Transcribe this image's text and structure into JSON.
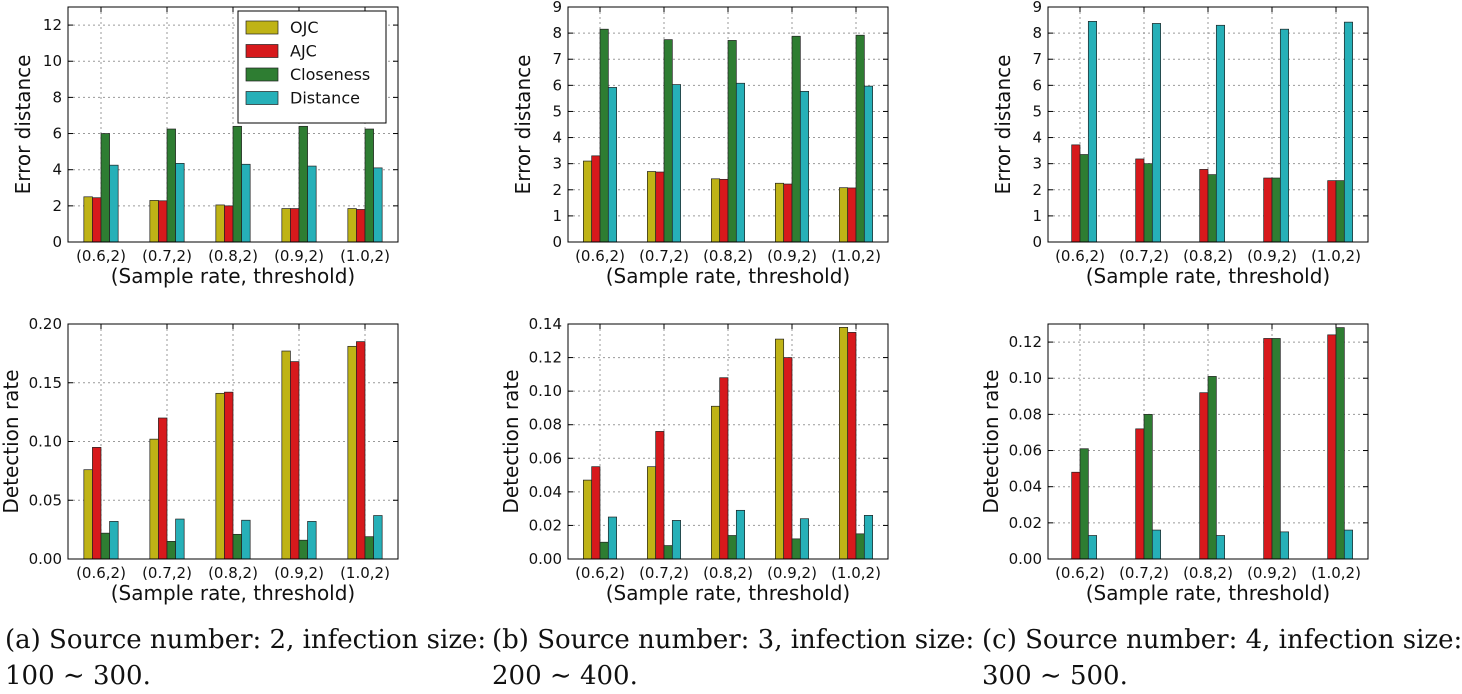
{
  "legend_colors": {
    "OJC": "#bfb316",
    "AJC": "#d7191c",
    "Closeness": "#2e7d32",
    "Distance": "#26b0b8"
  },
  "chart_data": [
    {
      "type": "bar",
      "panel": "a-top",
      "categories": [
        "(0.6,2)",
        "(0.7,2)",
        "(0.8,2)",
        "(0.9,2)",
        "(1.0,2)"
      ],
      "xlabel": "(Sample rate, threshold)",
      "ylabel": "Error distance",
      "ylim": [
        0,
        13
      ],
      "yticks": [
        0,
        2,
        4,
        6,
        8,
        10,
        12
      ],
      "ytick_labels": [
        "0",
        "2",
        "4",
        "6",
        "8",
        "10",
        "12"
      ],
      "grid": true,
      "legend": "top-right",
      "series": [
        {
          "name": "OJC",
          "values": [
            2.5,
            2.3,
            2.05,
            1.85,
            1.85
          ]
        },
        {
          "name": "AJC",
          "values": [
            2.45,
            2.28,
            2.0,
            1.85,
            1.8
          ]
        },
        {
          "name": "Closeness",
          "values": [
            6.0,
            6.25,
            6.4,
            6.4,
            6.25
          ]
        },
        {
          "name": "Distance",
          "values": [
            4.25,
            4.35,
            4.3,
            4.2,
            4.1
          ]
        }
      ]
    },
    {
      "type": "bar",
      "panel": "b-top",
      "categories": [
        "(0.6,2)",
        "(0.7,2)",
        "(0.8,2)",
        "(0.9,2)",
        "(1.0,2)"
      ],
      "xlabel": "(Sample rate, threshold)",
      "ylabel": "Error distance",
      "ylim": [
        0,
        9
      ],
      "yticks": [
        0,
        1,
        2,
        3,
        4,
        5,
        6,
        7,
        8,
        9
      ],
      "ytick_labels": [
        "0",
        "1",
        "2",
        "3",
        "4",
        "5",
        "6",
        "7",
        "8",
        "9"
      ],
      "grid": true,
      "series": [
        {
          "name": "OJC",
          "values": [
            3.1,
            2.7,
            2.42,
            2.25,
            2.08
          ]
        },
        {
          "name": "AJC",
          "values": [
            3.3,
            2.68,
            2.4,
            2.22,
            2.07
          ]
        },
        {
          "name": "Closeness",
          "values": [
            8.15,
            7.75,
            7.72,
            7.88,
            7.92
          ]
        },
        {
          "name": "Distance",
          "values": [
            5.92,
            6.03,
            6.08,
            5.77,
            5.97
          ]
        }
      ]
    },
    {
      "type": "bar",
      "panel": "c-top",
      "categories": [
        "(0.6,2)",
        "(0.7,2)",
        "(0.8,2)",
        "(0.9,2)",
        "(1.0,2)"
      ],
      "xlabel": "(Sample rate, threshold)",
      "ylabel": "Error distance",
      "ylim": [
        0,
        9
      ],
      "yticks": [
        0,
        1,
        2,
        3,
        4,
        5,
        6,
        7,
        8,
        9
      ],
      "ytick_labels": [
        "0",
        "1",
        "2",
        "3",
        "4",
        "5",
        "6",
        "7",
        "8",
        "9"
      ],
      "grid": true,
      "series": [
        {
          "name": "OJC",
          "values": [
            0,
            0,
            0,
            0,
            0
          ]
        },
        {
          "name": "AJC",
          "values": [
            3.72,
            3.18,
            2.78,
            2.45,
            2.35
          ]
        },
        {
          "name": "Closeness",
          "values": [
            3.35,
            3.0,
            2.58,
            2.45,
            2.35
          ]
        },
        {
          "name": "Distance",
          "values": [
            8.45,
            8.37,
            8.3,
            8.15,
            8.42
          ]
        }
      ]
    },
    {
      "type": "bar",
      "panel": "a-bottom",
      "categories": [
        "(0.6,2)",
        "(0.7,2)",
        "(0.8,2)",
        "(0.9,2)",
        "(1.0,2)"
      ],
      "xlabel": "(Sample rate, threshold)",
      "ylabel": "Detection rate",
      "ylim": [
        0,
        0.2
      ],
      "yticks": [
        0,
        0.05,
        0.1,
        0.15,
        0.2
      ],
      "ytick_labels": [
        "0.00",
        "0.05",
        "0.10",
        "0.15",
        "0.20"
      ],
      "grid": true,
      "series": [
        {
          "name": "OJC",
          "values": [
            0.076,
            0.102,
            0.141,
            0.177,
            0.181
          ]
        },
        {
          "name": "AJC",
          "values": [
            0.095,
            0.12,
            0.142,
            0.168,
            0.185
          ]
        },
        {
          "name": "Closeness",
          "values": [
            0.022,
            0.015,
            0.021,
            0.016,
            0.019
          ]
        },
        {
          "name": "Distance",
          "values": [
            0.032,
            0.034,
            0.033,
            0.032,
            0.037
          ]
        }
      ]
    },
    {
      "type": "bar",
      "panel": "b-bottom",
      "categories": [
        "(0.6,2)",
        "(0.7,2)",
        "(0.8,2)",
        "(0.9,2)",
        "(1.0,2)"
      ],
      "xlabel": "(Sample rate, threshold)",
      "ylabel": "Detection rate",
      "ylim": [
        0,
        0.14
      ],
      "yticks": [
        0,
        0.02,
        0.04,
        0.06,
        0.08,
        0.1,
        0.12,
        0.14
      ],
      "ytick_labels": [
        "0.00",
        "0.02",
        "0.04",
        "0.06",
        "0.08",
        "0.10",
        "0.12",
        "0.14"
      ],
      "grid": true,
      "series": [
        {
          "name": "OJC",
          "values": [
            0.047,
            0.055,
            0.091,
            0.131,
            0.138
          ]
        },
        {
          "name": "AJC",
          "values": [
            0.055,
            0.076,
            0.108,
            0.12,
            0.135
          ]
        },
        {
          "name": "Closeness",
          "values": [
            0.01,
            0.008,
            0.014,
            0.012,
            0.015
          ]
        },
        {
          "name": "Distance",
          "values": [
            0.025,
            0.023,
            0.029,
            0.024,
            0.026
          ]
        }
      ]
    },
    {
      "type": "bar",
      "panel": "c-bottom",
      "categories": [
        "(0.6,2)",
        "(0.7,2)",
        "(0.8,2)",
        "(0.9,2)",
        "(1.0,2)"
      ],
      "xlabel": "(Sample rate, threshold)",
      "ylabel": "Detection rate",
      "ylim": [
        0,
        0.13
      ],
      "yticks": [
        0,
        0.02,
        0.04,
        0.06,
        0.08,
        0.1,
        0.12
      ],
      "ytick_labels": [
        "0.00",
        "0.02",
        "0.04",
        "0.06",
        "0.08",
        "0.10",
        "0.12"
      ],
      "grid": true,
      "series": [
        {
          "name": "OJC",
          "values": [
            0,
            0,
            0,
            0,
            0
          ]
        },
        {
          "name": "AJC",
          "values": [
            0.048,
            0.072,
            0.092,
            0.122,
            0.124
          ]
        },
        {
          "name": "Closeness",
          "values": [
            0.061,
            0.08,
            0.101,
            0.122,
            0.128
          ]
        },
        {
          "name": "Distance",
          "values": [
            0.013,
            0.016,
            0.013,
            0.015,
            0.016
          ]
        }
      ]
    }
  ],
  "captions": [
    {
      "line1": "(a) Source number: 2, infection size:",
      "line2": "100 ∼ 300."
    },
    {
      "line1": "(b) Source number: 3, infection size:",
      "line2": "200 ∼ 400."
    },
    {
      "line1": "(c) Source number: 4, infection size:",
      "line2": "300 ∼ 500."
    }
  ]
}
